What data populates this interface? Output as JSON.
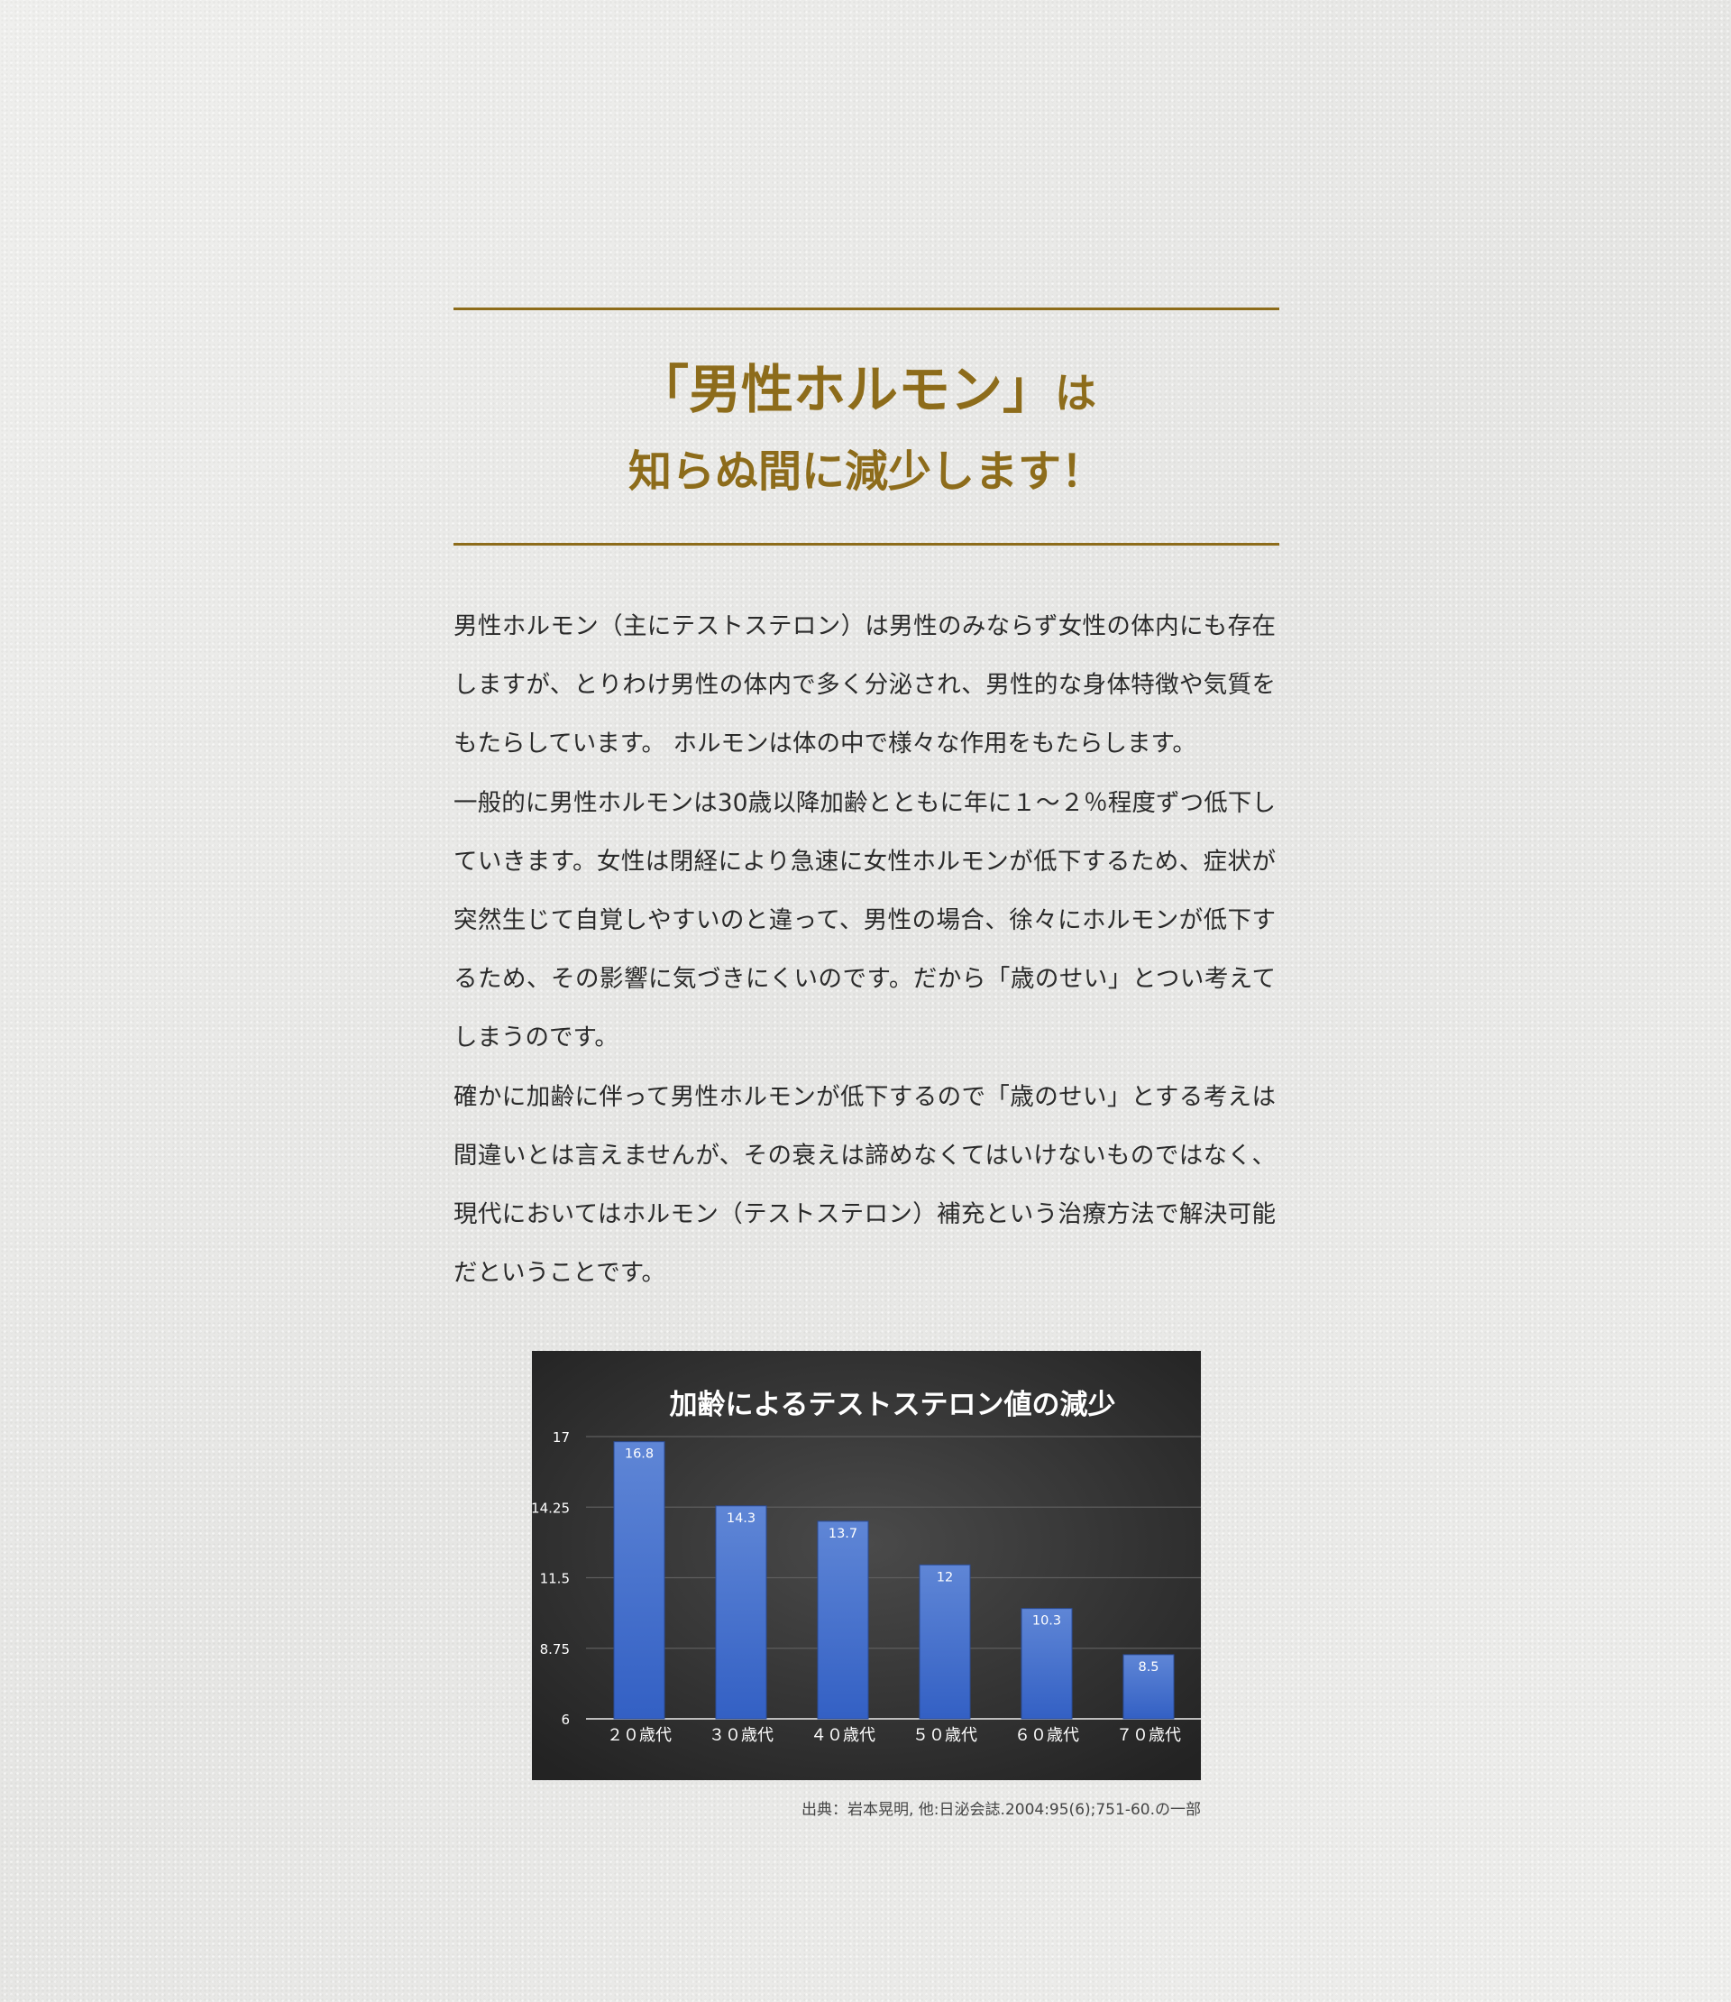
{
  "heading": {
    "line1_main": "「男性ホルモン」",
    "line1_tail": "は",
    "line2": "知らぬ間に減少します！"
  },
  "body": {
    "paragraphs": [
      "男性ホルモン（主にテストステロン）は男性のみならず女性の体内にも存在しますが、とりわけ男性の体内で多く分泌され、男性的な身体特徴や気質をもたらしています。 ホルモンは体の中で様々な作用をもたらします。",
      "一般的に男性ホルモンは30歳以降加齢とともに年に１～２％程度ずつ低下していきます。女性は閉経により急速に女性ホルモンが低下するため、症状が突然生じて自覚しやすいのと違って、男性の場合、徐々にホルモンが低下するため、その影響に気づきにくいのです。だから「歳のせい」とつい考えてしまうのです。",
      "確かに加齢に伴って男性ホルモンが低下するので「歳のせい」とする考えは間違いとは言えませんが、その衰えは諦めなくてはいけないものではなく、現代においてはホルモン（テストステロン）補充という治療方法で解決可能だということです。"
    ]
  },
  "chart_data": {
    "type": "bar",
    "title": "加齢によるテストステロン値の減少",
    "xlabel": "",
    "ylabel": "",
    "categories": [
      "２０歳代",
      "３０歳代",
      "４０歳代",
      "５０歳代",
      "６０歳代",
      "７０歳代"
    ],
    "values": [
      16.8,
      14.3,
      13.7,
      12,
      10.3,
      8.5
    ],
    "data_labels": [
      "16.8",
      "14.3",
      "13.7",
      "12",
      "10.3",
      "8.5"
    ],
    "ylim": [
      6,
      17
    ],
    "yticks": [
      "6",
      "8.75",
      "11.5",
      "14.25",
      "17"
    ],
    "grid": true,
    "legend": "none",
    "colors": {
      "bar_top": "#5f86d6",
      "bar_bottom": "#3360c4",
      "background": "#2f2f2f",
      "text": "#ffffff"
    }
  },
  "source": "出典：岩本晃明, 他:日泌会誌.2004:95(6);751-60.の一部"
}
